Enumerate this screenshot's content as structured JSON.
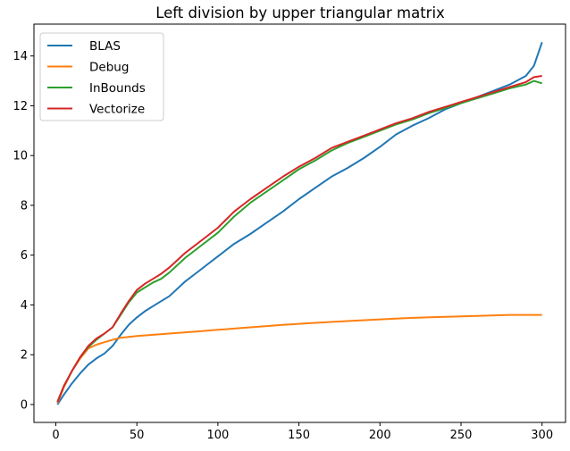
{
  "chart_data": {
    "type": "line",
    "title": "Left division by upper triangular matrix",
    "xlabel": "",
    "ylabel": "",
    "xlim": [
      -13.5,
      314.5
    ],
    "ylim": [
      -0.72,
      15.28
    ],
    "x_ticks": [
      0,
      50,
      100,
      150,
      200,
      250,
      300
    ],
    "y_ticks": [
      0,
      2,
      4,
      6,
      8,
      10,
      12,
      14
    ],
    "grid": false,
    "legend_position": "top-left",
    "series": [
      {
        "name": "BLAS",
        "color": "#1f77b4",
        "x": [
          1,
          5,
          10,
          15,
          20,
          25,
          30,
          35,
          40,
          45,
          50,
          55,
          60,
          65,
          70,
          75,
          80,
          85,
          90,
          95,
          100,
          110,
          120,
          130,
          140,
          150,
          160,
          170,
          180,
          190,
          200,
          210,
          220,
          230,
          240,
          250,
          260,
          270,
          280,
          290,
          295,
          300
        ],
        "values": [
          0.0,
          0.4,
          0.85,
          1.25,
          1.6,
          1.85,
          2.05,
          2.35,
          2.8,
          3.2,
          3.5,
          3.75,
          3.95,
          4.15,
          4.35,
          4.65,
          4.95,
          5.2,
          5.45,
          5.7,
          5.95,
          6.45,
          6.85,
          7.3,
          7.75,
          8.25,
          8.7,
          9.15,
          9.5,
          9.9,
          10.35,
          10.85,
          11.2,
          11.5,
          11.85,
          12.1,
          12.35,
          12.6,
          12.85,
          13.2,
          13.6,
          14.55
        ]
      },
      {
        "name": "Debug",
        "color": "#ff7f0e",
        "x": [
          1,
          5,
          10,
          15,
          20,
          25,
          30,
          35,
          40,
          50,
          60,
          70,
          80,
          90,
          100,
          120,
          140,
          160,
          180,
          200,
          220,
          240,
          260,
          280,
          300
        ],
        "values": [
          0.05,
          0.7,
          1.35,
          1.85,
          2.25,
          2.4,
          2.5,
          2.6,
          2.68,
          2.75,
          2.8,
          2.85,
          2.9,
          2.95,
          3.0,
          3.1,
          3.2,
          3.28,
          3.35,
          3.42,
          3.48,
          3.52,
          3.56,
          3.6,
          3.6
        ]
      },
      {
        "name": "InBounds",
        "color": "#2ca02c",
        "x": [
          1,
          5,
          10,
          15,
          20,
          25,
          30,
          35,
          40,
          45,
          50,
          55,
          60,
          65,
          70,
          80,
          90,
          100,
          110,
          120,
          130,
          140,
          150,
          160,
          170,
          180,
          190,
          200,
          210,
          220,
          230,
          240,
          250,
          260,
          270,
          280,
          290,
          295,
          300
        ],
        "values": [
          0.1,
          0.75,
          1.35,
          1.9,
          2.3,
          2.6,
          2.85,
          3.1,
          3.6,
          4.1,
          4.5,
          4.7,
          4.9,
          5.05,
          5.3,
          5.9,
          6.4,
          6.9,
          7.55,
          8.1,
          8.55,
          9.0,
          9.45,
          9.8,
          10.2,
          10.5,
          10.75,
          11.0,
          11.25,
          11.45,
          11.7,
          11.9,
          12.1,
          12.3,
          12.5,
          12.7,
          12.85,
          13.0,
          12.9
        ]
      },
      {
        "name": "Vectorize",
        "color": "#d62728",
        "x": [
          1,
          5,
          10,
          15,
          20,
          25,
          30,
          35,
          40,
          45,
          50,
          55,
          60,
          65,
          70,
          80,
          90,
          100,
          110,
          120,
          130,
          140,
          150,
          160,
          170,
          180,
          190,
          200,
          210,
          220,
          230,
          240,
          250,
          260,
          270,
          280,
          290,
          295,
          300
        ],
        "values": [
          0.1,
          0.75,
          1.35,
          1.9,
          2.35,
          2.65,
          2.85,
          3.1,
          3.65,
          4.15,
          4.6,
          4.85,
          5.05,
          5.25,
          5.5,
          6.1,
          6.6,
          7.1,
          7.75,
          8.25,
          8.7,
          9.15,
          9.55,
          9.9,
          10.3,
          10.55,
          10.8,
          11.05,
          11.3,
          11.5,
          11.75,
          11.95,
          12.15,
          12.35,
          12.55,
          12.75,
          12.95,
          13.15,
          13.2
        ]
      }
    ]
  }
}
